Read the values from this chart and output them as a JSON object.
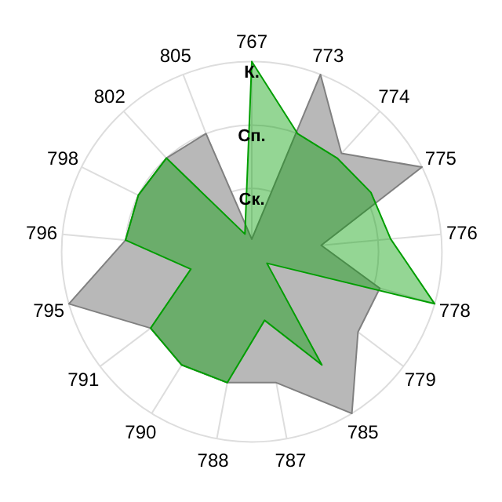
{
  "chart_data": {
    "type": "radar",
    "categories": [
      "767",
      "773",
      "774",
      "775",
      "776",
      "778",
      "779",
      "785",
      "787",
      "788",
      "790",
      "791",
      "795",
      "796",
      "798",
      "802",
      "805"
    ],
    "series": [
      {
        "color": "#b8b8b8",
        "values": [
          0.2,
          3,
          2.1,
          3,
          1.1,
          2.1,
          2.1,
          3,
          2.1,
          2.1,
          2.1,
          2,
          3,
          2,
          2,
          2,
          2
        ]
      },
      {
        "color": "#009e00",
        "values": [
          3,
          2,
          2,
          2.1,
          2.2,
          3,
          0.3,
          2.1,
          1.1,
          2.1,
          2.1,
          2,
          1,
          2,
          2,
          2,
          0.3
        ]
      }
    ],
    "ylim": [
      0,
      3
    ],
    "yticks": [
      {
        "value": 1,
        "label": "Ск."
      },
      {
        "value": 2,
        "label": "Сп."
      },
      {
        "value": 3,
        "label": "К."
      }
    ],
    "grid": true
  }
}
